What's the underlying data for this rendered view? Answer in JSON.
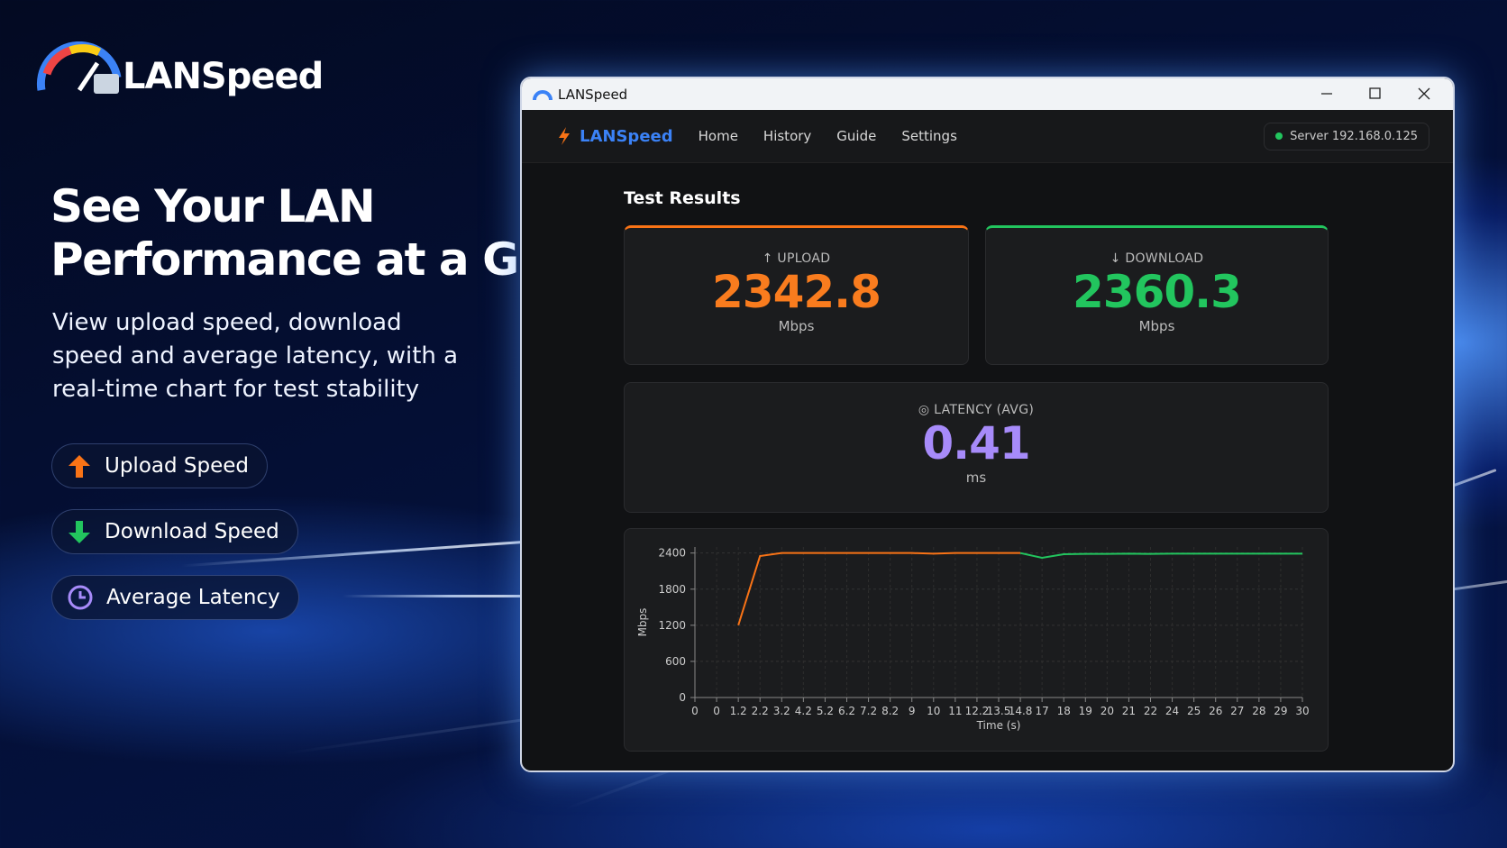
{
  "brand": {
    "name": "LANSpeed"
  },
  "hero": {
    "headline": [
      "See Your LAN",
      "Performance at a Glance"
    ],
    "description": "View upload speed, download speed and average latency, with a real-time chart for test stability"
  },
  "features": [
    "Upload Speed",
    "Download Speed",
    "Average Latency"
  ],
  "window": {
    "title": "LANSpeed",
    "app_name": "LANSpeed",
    "nav": [
      "Home",
      "History",
      "Guide",
      "Settings"
    ],
    "server": "Server 192.168.0.125",
    "section_title": "Test Results",
    "upload": {
      "label": "UPLOAD",
      "value": 2342.8,
      "unit": "Mbps"
    },
    "download": {
      "label": "DOWNLOAD",
      "value": 2360.3,
      "unit": "Mbps"
    },
    "latency": {
      "label": "LATENCY (AVG)",
      "value": 0.41,
      "unit": "ms"
    }
  },
  "chart_data": {
    "type": "line",
    "x_label": "Time (s)",
    "y_label": "Mbps",
    "categories": [
      "0",
      "0",
      "1.2",
      "2.2",
      "3.2",
      "4.2",
      "5.2",
      "6.2",
      "7.2",
      "8.2",
      "9",
      "10",
      "11",
      "12.2",
      "13.5",
      "14.8",
      "17",
      "18",
      "19",
      "20",
      "21",
      "22",
      "24",
      "25",
      "26",
      "27",
      "28",
      "29",
      "30"
    ],
    "series": [
      {
        "color": "#f97316",
        "values": [
          null,
          null,
          1200,
          2350,
          2400,
          2400,
          2400,
          2400,
          2400,
          2400,
          2400,
          2390,
          2400,
          2400,
          2400,
          2400,
          null,
          null,
          null,
          null,
          null,
          null,
          null,
          null,
          null,
          null,
          null,
          null,
          null
        ]
      },
      {
        "color": "#22c55e",
        "values": [
          null,
          null,
          null,
          null,
          null,
          null,
          null,
          null,
          null,
          null,
          null,
          null,
          null,
          null,
          null,
          2400,
          2320,
          2380,
          2385,
          2385,
          2390,
          2385,
          2390,
          2390,
          2390,
          2390,
          2390,
          2390,
          2390
        ]
      }
    ],
    "ylim": [
      0,
      2500
    ],
    "yticks": [
      0,
      600,
      1200,
      1800,
      2400
    ],
    "grid": true
  }
}
